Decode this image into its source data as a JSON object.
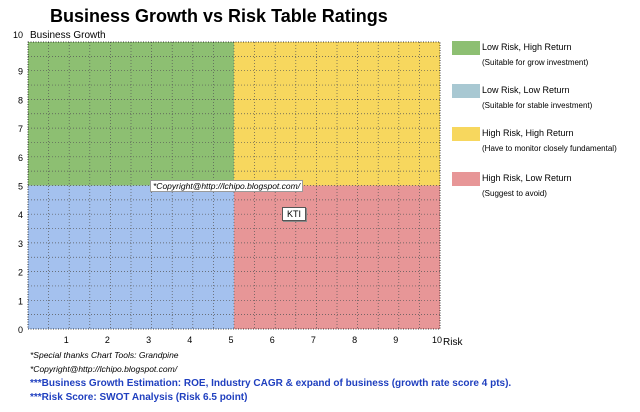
{
  "chart_data": {
    "type": "scatter",
    "title": "Business Growth vs Risk Table Ratings",
    "xlabel": "Risk",
    "ylabel": "Business Growth",
    "xlim": [
      0,
      10
    ],
    "ylim": [
      0,
      10
    ],
    "x_ticks": [
      1,
      2,
      3,
      4,
      5,
      6,
      7,
      8,
      9,
      10
    ],
    "y_ticks": [
      0,
      1,
      2,
      3,
      4,
      5,
      6,
      7,
      8,
      9,
      10
    ],
    "grid": true,
    "grid_minor_step": 0.5,
    "quadrants": [
      {
        "name": "Low Risk, High Return",
        "note": "(Suitable for grow investment)",
        "color": "#8dbf72",
        "x_range": [
          0,
          5
        ],
        "y_range": [
          5,
          10
        ]
      },
      {
        "name": "Low Risk, Low Return",
        "note": "(Suitable for stable investment)",
        "color": "#a4c1ee",
        "x_range": [
          0,
          5
        ],
        "y_range": [
          0,
          5
        ]
      },
      {
        "name": "High Risk, High Return",
        "note": "(Have to monitor closely  fundamental)",
        "color": "#f7d75e",
        "x_range": [
          5,
          10
        ],
        "y_range": [
          5,
          10
        ]
      },
      {
        "name": "High Risk, Low Return",
        "note": "(Suggest to avoid)",
        "color": "#e79697",
        "x_range": [
          5,
          10
        ],
        "y_range": [
          0,
          5
        ]
      }
    ],
    "legend_order": [
      0,
      1,
      2,
      3
    ],
    "legend_swatch_colors": [
      "#8dbf72",
      "#a4c1ee",
      "#f7d75e",
      "#e79697"
    ],
    "points": [
      {
        "label": "KTI",
        "x": 6.5,
        "y": 4
      }
    ],
    "annotations": [
      "*Copyright@http://lchipo.blogspot.com/"
    ]
  },
  "notes": {
    "thanks": "*Special thanks Chart Tools: Grandpine",
    "copyright": "*Copyright@http://lchipo.blogspot.com/",
    "growth_estimation": "***Business Growth Estimation: ROE, Industry CAGR & expand of business (growth rate score 4 pts).",
    "risk_score": "***Risk Score: SWOT Analysis (Risk 6.5 point)"
  }
}
